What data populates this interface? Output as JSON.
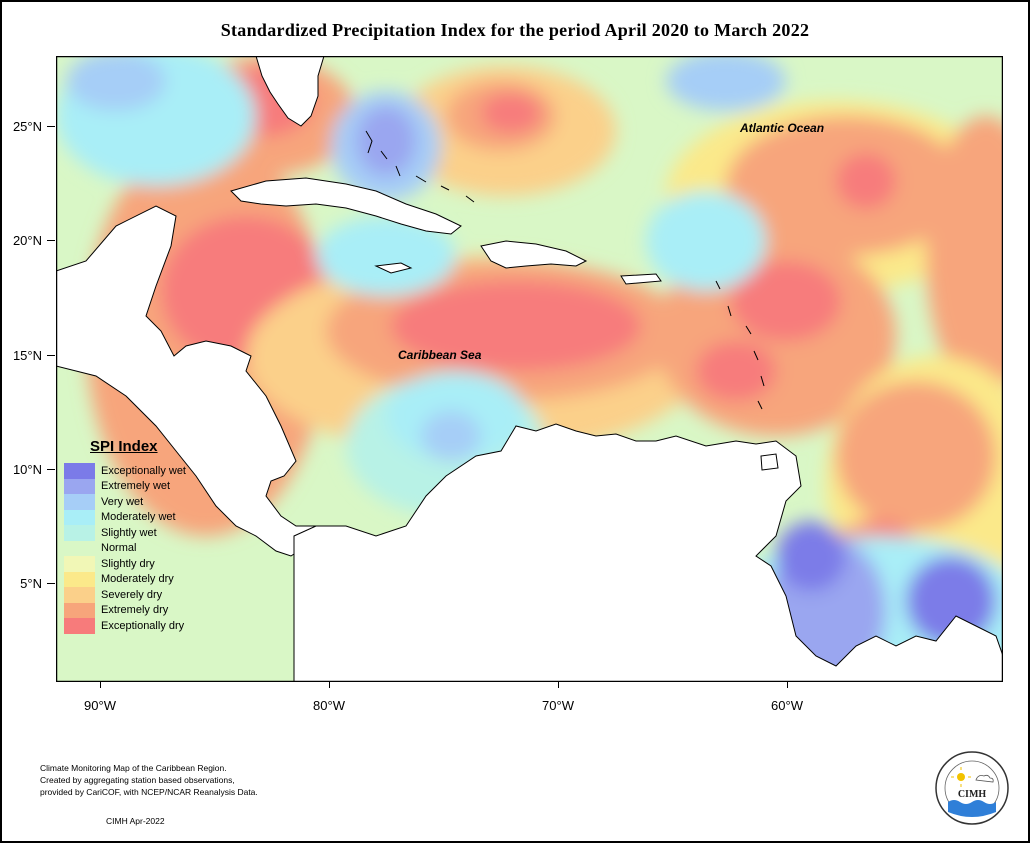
{
  "title": "Standardized Precipitation Index for the period April 2020 to March 2022",
  "map": {
    "lat_labels": [
      "25°N",
      "20°N",
      "15°N",
      "10°N",
      "5°N"
    ],
    "lon_labels": [
      "90°W",
      "80°W",
      "70°W",
      "60°W"
    ],
    "labels": {
      "atlantic": "Atlantic Ocean",
      "caribbean": "Caribbean Sea"
    }
  },
  "legend": {
    "title": "SPI Index",
    "items": [
      {
        "label": "Exceptionally wet",
        "color": "#7b7be8"
      },
      {
        "label": "Extremely wet",
        "color": "#9aa6f0"
      },
      {
        "label": "Very wet",
        "color": "#a6cef7"
      },
      {
        "label": "Moderately wet",
        "color": "#a9eef7"
      },
      {
        "label": "Slightly wet",
        "color": "#b8f2e6"
      },
      {
        "label": "Normal",
        "color": "#d9f7c6"
      },
      {
        "label": "Slightly dry",
        "color": "#f1f7b6"
      },
      {
        "label": "Moderately dry",
        "color": "#fbe98a"
      },
      {
        "label": "Severely dry",
        "color": "#fbd08a"
      },
      {
        "label": "Extremely dry",
        "color": "#f7a57b"
      },
      {
        "label": "Exceptionally dry",
        "color": "#f77b7b"
      }
    ]
  },
  "footnote": {
    "line1": "Climate Monitoring Map of the Caribbean Region.",
    "line2": "Created by aggregating station based observations,",
    "line3": "provided by CariCOF, with NCEP/NCAR Reanalysis Data.",
    "stamp": "CIMH Apr-2022"
  },
  "logo": {
    "text": "CIMH"
  }
}
